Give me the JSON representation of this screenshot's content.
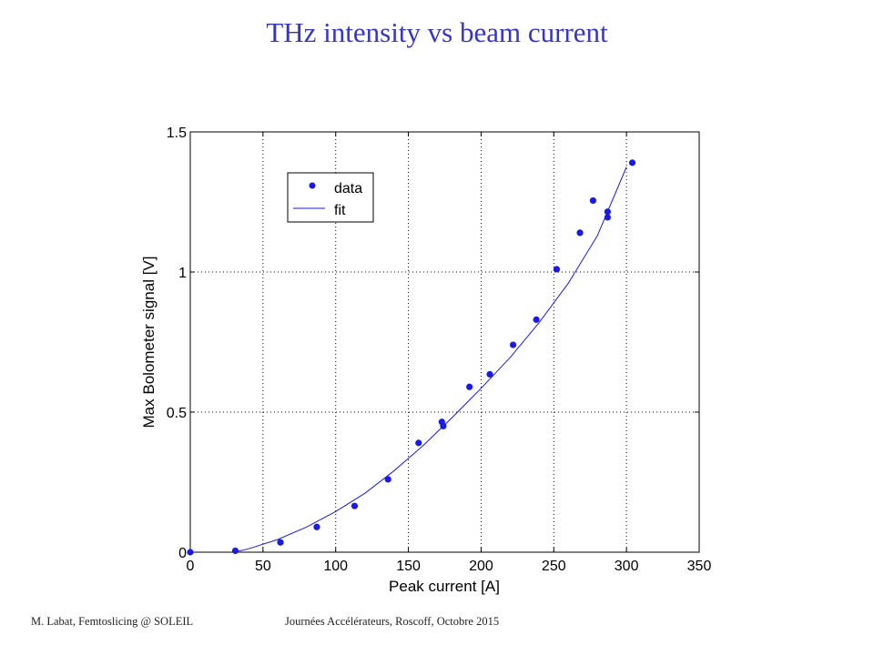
{
  "slide": {
    "title": "THz intensity vs beam current",
    "footer_left": "M. Labat, Femtoslicing @ SOLEIL",
    "footer_right": "Journées Accélérateurs, Roscoff, Octobre 2015"
  },
  "chart_data": {
    "type": "scatter",
    "title": "",
    "xlabel": "Peak current [A]",
    "ylabel": "Max Bolometer signal [V]",
    "xlim": [
      0,
      350
    ],
    "ylim": [
      0,
      1.5
    ],
    "xticks": [
      0,
      50,
      100,
      150,
      200,
      250,
      300,
      350
    ],
    "yticks": [
      0,
      0.5,
      1,
      1.5
    ],
    "ytick_labels": [
      "0",
      "0.5",
      "1",
      "1.5"
    ],
    "grid": true,
    "legend_position": "top-left",
    "marker_color": "#1a1ae6",
    "line_color": "#1a1ae6",
    "series": [
      {
        "name": "data",
        "kind": "markers",
        "x": [
          0,
          31,
          62,
          87,
          113,
          136,
          157,
          173,
          174,
          192,
          206,
          222,
          238,
          252,
          268,
          277,
          287,
          287,
          304
        ],
        "y": [
          0,
          0.005,
          0.035,
          0.09,
          0.165,
          0.26,
          0.39,
          0.465,
          0.45,
          0.59,
          0.635,
          0.74,
          0.83,
          1.01,
          1.14,
          1.255,
          1.215,
          1.195,
          1.39
        ]
      },
      {
        "name": "fit",
        "kind": "line",
        "x": [
          30,
          40,
          60,
          80,
          100,
          120,
          140,
          160,
          180,
          200,
          220,
          240,
          260,
          280,
          300
        ],
        "y": [
          0,
          0.012,
          0.045,
          0.09,
          0.145,
          0.21,
          0.29,
          0.38,
          0.48,
          0.585,
          0.695,
          0.82,
          0.96,
          1.13,
          1.375
        ]
      }
    ]
  }
}
